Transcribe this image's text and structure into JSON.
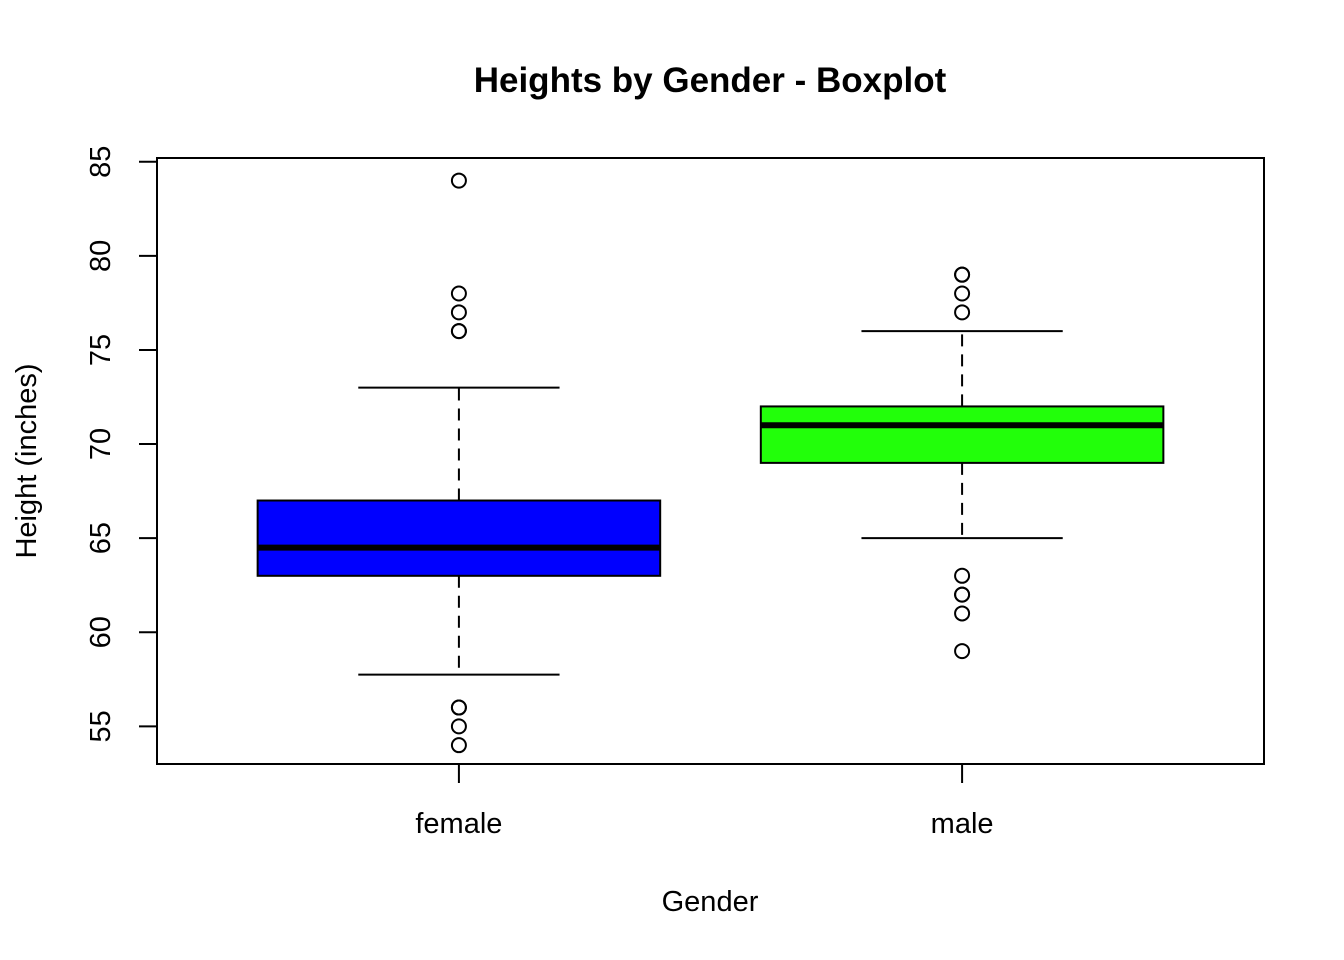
{
  "chart_data": {
    "type": "boxplot",
    "title": "Heights by Gender - Boxplot",
    "xlabel": "Gender",
    "ylabel": "Height (inches)",
    "ylim": [
      53,
      85.2
    ],
    "yticks": [
      55,
      60,
      65,
      70,
      75,
      80,
      85
    ],
    "grid": false,
    "legend": "none",
    "categories": [
      "female",
      "male"
    ],
    "boxes": [
      {
        "category": "female",
        "color": "#0000ff",
        "whisker_low": 57.75,
        "q1": 63,
        "median": 64.5,
        "q3": 67,
        "whisker_high": 73,
        "outliers": [
          54,
          55,
          56,
          56,
          76,
          76,
          77,
          78,
          84
        ]
      },
      {
        "category": "male",
        "color": "#22ff0a",
        "whisker_low": 65,
        "q1": 69,
        "median": 71,
        "q3": 72,
        "whisker_high": 76,
        "outliers": [
          59,
          61,
          62,
          62,
          63,
          77,
          78,
          79,
          79
        ]
      }
    ]
  }
}
